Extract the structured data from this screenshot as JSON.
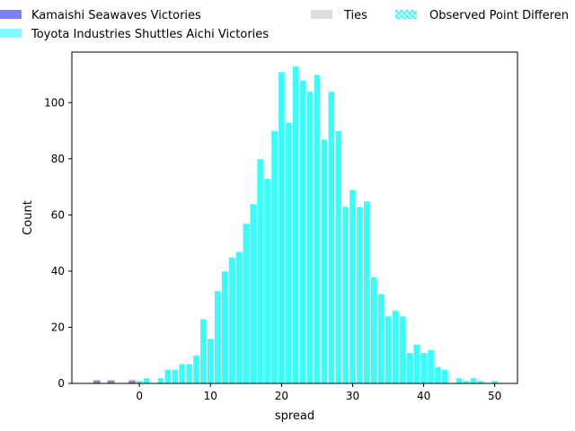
{
  "chart_data": {
    "type": "bar",
    "title": "",
    "xlabel": "spread",
    "ylabel": "Count",
    "xlim": [
      -9.5,
      53.2
    ],
    "ylim": [
      0,
      118
    ],
    "xticks": [
      0,
      10,
      20,
      30,
      40,
      50
    ],
    "yticks": [
      0,
      20,
      40,
      60,
      80,
      100
    ],
    "grid": false,
    "legend_placement": "top (above plot, 3 columns)",
    "legend": [
      {
        "label": "Kamaishi Seawaves Victories",
        "color": "#7f7fff"
      },
      {
        "label": "Toyota Industries Shuttles Aichi Victories",
        "color": "#7fffff"
      },
      {
        "label": "Ties",
        "color": "#dddddd"
      },
      {
        "label": "Observed Point Differen",
        "color": "#33ffff",
        "hatch": "x"
      }
    ],
    "series": [
      {
        "name": "Kamaishi Seawaves Victories",
        "color": "#7f7fff",
        "edge": "#ff8c00",
        "x": [
          -6,
          -4,
          -1
        ],
        "values": [
          1,
          1,
          1
        ]
      },
      {
        "name": "Toyota Industries Shuttles Aichi Victories",
        "color": "#33ffff",
        "edge": "#ffffff",
        "x": [
          0,
          1,
          3,
          4,
          5,
          6,
          7,
          8,
          9,
          10,
          11,
          12,
          13,
          14,
          15,
          16,
          17,
          18,
          19,
          20,
          21,
          22,
          23,
          24,
          25,
          26,
          27,
          28,
          29,
          30,
          31,
          32,
          33,
          34,
          35,
          36,
          37,
          38,
          39,
          40,
          41,
          42,
          43,
          45,
          46,
          47,
          48,
          50
        ],
        "values": [
          1,
          2,
          2,
          5,
          5,
          7,
          7,
          10,
          23,
          16,
          33,
          40,
          45,
          47,
          57,
          64,
          80,
          73,
          90,
          111,
          93,
          113,
          108,
          104,
          110,
          87,
          104,
          90,
          63,
          69,
          63,
          65,
          38,
          32,
          24,
          26,
          24,
          11,
          14,
          11,
          12,
          6,
          5,
          2,
          1,
          2,
          1,
          1
        ]
      }
    ]
  }
}
